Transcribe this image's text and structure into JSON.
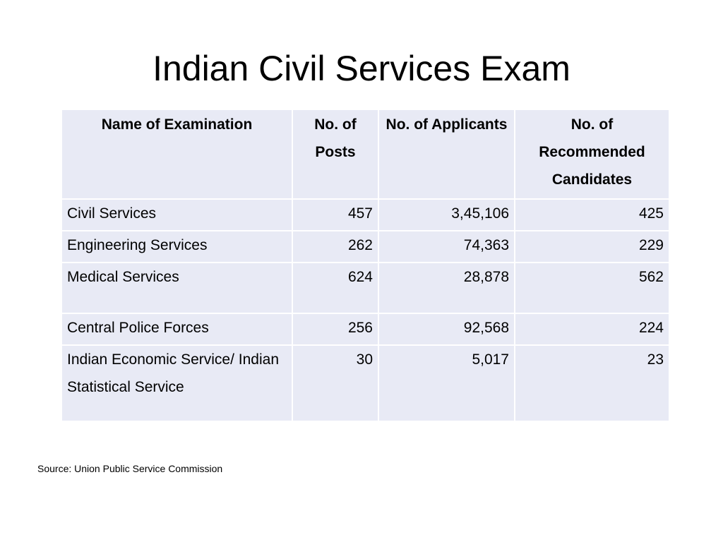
{
  "slide": {
    "title": "Indian Civil Services Exam",
    "source": "Source: Union Public Service Commission"
  },
  "table": {
    "headers": [
      "Name of Examination",
      "No. of Posts",
      "No. of Applicants",
      "No. of Recommended Candidates"
    ],
    "rows": [
      {
        "name": "Civil Services",
        "posts": "457",
        "applicants": "3,45,106",
        "recommended": "425"
      },
      {
        "name": "Engineering Services",
        "posts": "262",
        "applicants": "74,363",
        "recommended": "229"
      },
      {
        "name": "Medical Services",
        "posts": "624",
        "applicants": "28,878",
        "recommended": "562"
      },
      {
        "name": "Central Police Forces",
        "posts": "256",
        "applicants": "92,568",
        "recommended": "224"
      },
      {
        "name": "Indian Economic Service/ Indian Statistical Service",
        "posts": "30",
        "applicants": "5,017",
        "recommended": "23"
      }
    ]
  },
  "colors": {
    "cell_background": "#e8eaf5",
    "cell_border": "#ffffff",
    "text": "#000000"
  }
}
